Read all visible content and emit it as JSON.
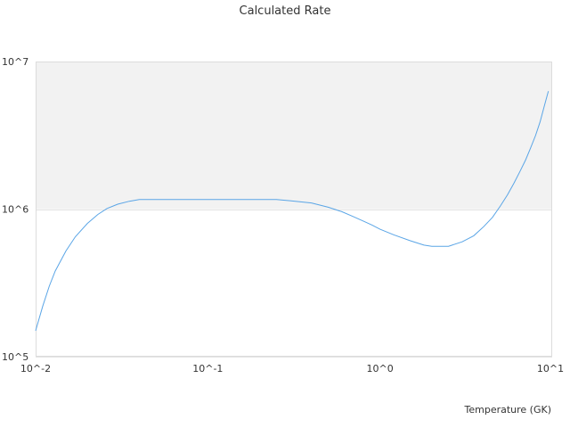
{
  "chart_data": {
    "type": "line",
    "title": "Calculated Rate",
    "xlabel": "Temperature (GK)",
    "ylabel": "",
    "x_scale": "log",
    "y_scale": "log",
    "xlim": [
      0.01,
      10
    ],
    "ylim": [
      100000,
      10000000
    ],
    "x_ticks": [
      {
        "value": 0.01,
        "label": "10^-2"
      },
      {
        "value": 0.1,
        "label": "10^-1"
      },
      {
        "value": 1,
        "label": "10^0"
      },
      {
        "value": 10,
        "label": "10^1"
      }
    ],
    "y_ticks": [
      {
        "value": 100000,
        "label": "10^5"
      },
      {
        "value": 1000000,
        "label": "10^6"
      },
      {
        "value": 10000000,
        "label": "10^7"
      }
    ],
    "grid": true,
    "legend": "none",
    "band": {
      "y_from": 1000000,
      "y_to": 10000000,
      "color": "#f2f2f2"
    },
    "series": [
      {
        "color": "#5aa5e6",
        "points": [
          [
            0.01,
            150000
          ],
          [
            0.011,
            220000
          ],
          [
            0.012,
            300000
          ],
          [
            0.013,
            380000
          ],
          [
            0.015,
            520000
          ],
          [
            0.017,
            650000
          ],
          [
            0.02,
            800000
          ],
          [
            0.023,
            920000
          ],
          [
            0.026,
            1010000
          ],
          [
            0.03,
            1080000
          ],
          [
            0.035,
            1130000
          ],
          [
            0.04,
            1160000
          ],
          [
            0.05,
            1160000
          ],
          [
            0.07,
            1160000
          ],
          [
            0.1,
            1160000
          ],
          [
            0.15,
            1160000
          ],
          [
            0.2,
            1160000
          ],
          [
            0.25,
            1160000
          ],
          [
            0.3,
            1140000
          ],
          [
            0.4,
            1100000
          ],
          [
            0.5,
            1030000
          ],
          [
            0.6,
            960000
          ],
          [
            0.7,
            890000
          ],
          [
            0.8,
            830000
          ],
          [
            0.9,
            780000
          ],
          [
            1.0,
            730000
          ],
          [
            1.2,
            670000
          ],
          [
            1.5,
            610000
          ],
          [
            1.8,
            570000
          ],
          [
            2.0,
            560000
          ],
          [
            2.5,
            560000
          ],
          [
            3.0,
            600000
          ],
          [
            3.5,
            660000
          ],
          [
            4.0,
            760000
          ],
          [
            4.5,
            880000
          ],
          [
            5.0,
            1050000
          ],
          [
            5.5,
            1250000
          ],
          [
            6.0,
            1500000
          ],
          [
            6.5,
            1800000
          ],
          [
            7.0,
            2150000
          ],
          [
            7.5,
            2600000
          ],
          [
            8.0,
            3150000
          ],
          [
            8.5,
            3900000
          ],
          [
            9.0,
            5000000
          ],
          [
            9.5,
            6300000
          ]
        ]
      }
    ]
  }
}
